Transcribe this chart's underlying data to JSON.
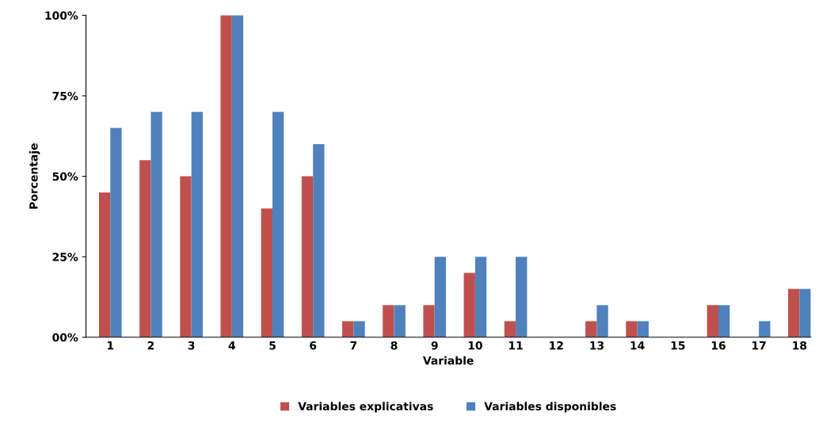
{
  "chart_data": {
    "type": "bar",
    "xlabel": "Variable",
    "ylabel": "Porcentaje",
    "categories": [
      "1",
      "2",
      "3",
      "4",
      "5",
      "6",
      "7",
      "8",
      "9",
      "10",
      "11",
      "12",
      "13",
      "14",
      "15",
      "16",
      "17",
      "18"
    ],
    "series": [
      {
        "name": "Variables explicativas",
        "color": "#c0504d",
        "values": [
          45,
          55,
          50,
          100,
          40,
          50,
          5,
          10,
          10,
          20,
          5,
          0,
          5,
          5,
          0,
          10,
          0,
          15
        ]
      },
      {
        "name": "Variables disponibles",
        "color": "#4f81bd",
        "values": [
          65,
          70,
          70,
          100,
          70,
          60,
          5,
          10,
          25,
          25,
          25,
          0,
          10,
          5,
          0,
          10,
          5,
          15
        ]
      }
    ],
    "ylim": [
      0,
      100
    ],
    "yticks": [
      {
        "value": 0,
        "label": "00%"
      },
      {
        "value": 25,
        "label": "25%"
      },
      {
        "value": 50,
        "label": "50%"
      },
      {
        "value": 75,
        "label": "75%"
      },
      {
        "value": 100,
        "label": "100%"
      }
    ],
    "grid": false,
    "legend": "bottom"
  }
}
